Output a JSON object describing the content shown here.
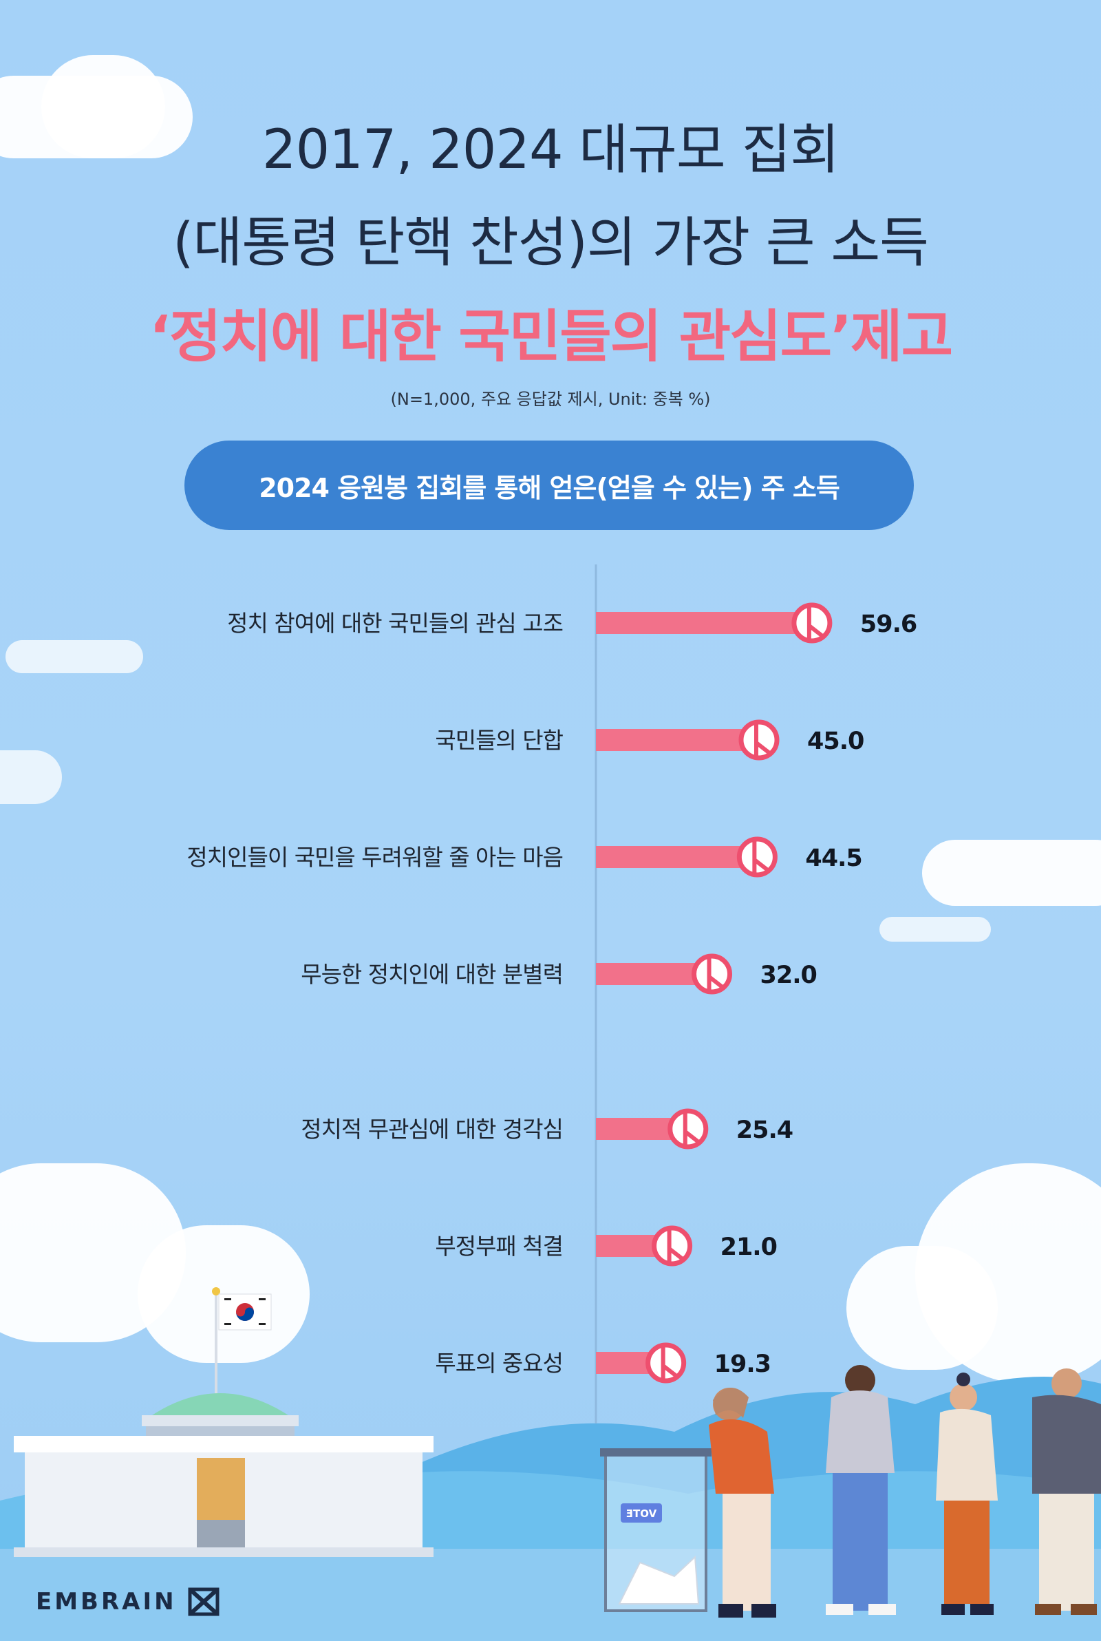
{
  "title": {
    "line1": "2017, 2024 대규모 집회",
    "line2": "(대통령 탄핵 찬성)의 가장 큰 소득",
    "line3": "‘정치에 대한 국민들의 관심도’제고"
  },
  "note": "(N=1,000, 주요 응답값 제시, Unit: 중복 %)",
  "chart_data": {
    "type": "bar",
    "orientation": "horizontal",
    "title": "2024 응원봉 집회를 통해 얻은(얻을 수 있는) 주 소득",
    "categories": [
      "정치 참여에 대한 국민들의 관심 고조",
      "국민들의 단합",
      "정치인들이 국민을 두려워할 줄 아는 마음",
      "무능한 정치인에 대한 분별력",
      "정치적 무관심에 대한 경각심",
      "부정부패 척결",
      "투표의 중요성"
    ],
    "values": [
      59.6,
      45.0,
      44.5,
      32.0,
      25.4,
      21.0,
      19.3
    ],
    "value_labels": [
      "59.6",
      "45.0",
      "44.5",
      "32.0",
      "25.4",
      "21.0",
      "19.3"
    ],
    "unit": "%",
    "xlim": [
      0,
      60
    ],
    "grid": false,
    "legend": "none",
    "colors": {
      "bar": "#f2718a",
      "marker_ring": "#ee4f6e",
      "axis": "#8fb9df"
    }
  },
  "illustrations": {
    "flag": "korean-flag-icon",
    "building": "national-assembly-building",
    "ballot_box_label": "VOTE",
    "voters": "voter-people-illustration"
  },
  "brand": {
    "name": "EMBRAIN",
    "icon": "embrain-logo-icon"
  },
  "colors": {
    "background": "#a6d3f8",
    "title": "#1d2b43",
    "highlight": "#f2677f",
    "pill": "#3a82d2"
  }
}
